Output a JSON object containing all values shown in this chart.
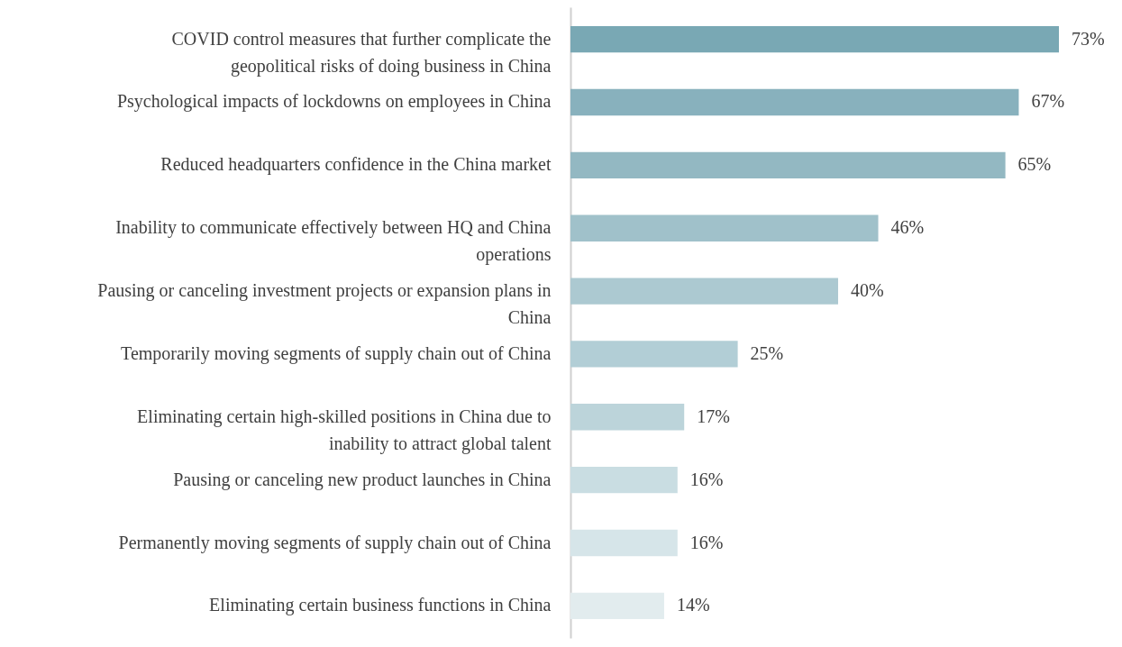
{
  "chart_data": {
    "type": "bar",
    "orientation": "horizontal",
    "categories": [
      "COVID control measures that further complicate the geopolitical risks of doing business in China",
      "Psychological impacts of lockdowns on employees in China",
      "Reduced headquarters confidence in the China market",
      "Inability to communicate effectively between HQ and China operations",
      "Pausing or canceling investment projects or expansion plans in China",
      "Temporarily moving segments of supply chain out of China",
      "Eliminating certain high-skilled positions in China due to inability to attract global talent",
      "Pausing or canceling new product launches in China",
      "Permanently moving segments of supply chain out of China",
      "Eliminating certain business functions in China"
    ],
    "values": [
      73,
      67,
      65,
      46,
      40,
      25,
      17,
      16,
      16,
      14
    ],
    "value_labels": [
      "73%",
      "67%",
      "65%",
      "46%",
      "40%",
      "25%",
      "17%",
      "16%",
      "16%",
      "14%"
    ],
    "colors": [
      "#79a8b4",
      "#88b1bd",
      "#93b8c2",
      "#a0c1ca",
      "#acc9d1",
      "#b2ced6",
      "#bcd4da",
      "#c9dde2",
      "#d6e5e9",
      "#e2ecee"
    ],
    "grid": false
  }
}
